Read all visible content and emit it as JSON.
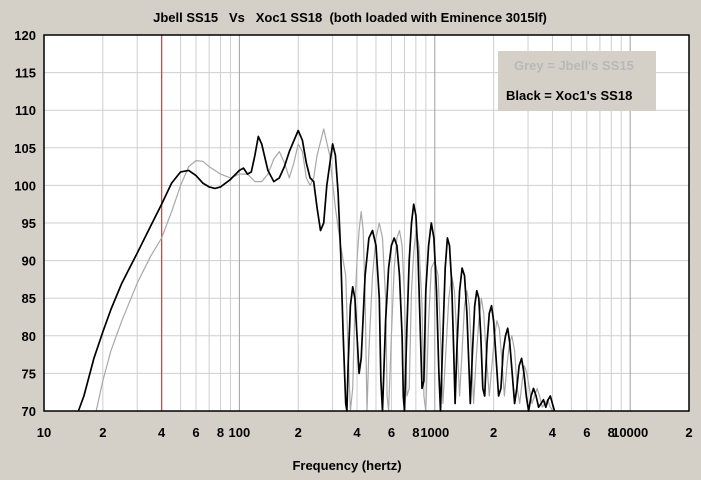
{
  "chart_data": {
    "type": "line",
    "title": "Jbell SS15   Vs   Xoc1 SS18  (both loaded with Eminence 3015lf)",
    "xlabel": "Frequency (hertz)",
    "ylabel": "",
    "xscale": "log",
    "xlim": [
      10,
      20000
    ],
    "ylim": [
      70,
      120
    ],
    "grid": true,
    "legend_placement": "top-right",
    "yticks": [
      "120",
      "115",
      "110",
      "105",
      "100",
      "95",
      "90",
      "85",
      "80",
      "75",
      "70"
    ],
    "xticks": [
      {
        "value": 10,
        "label": "10"
      },
      {
        "value": 20,
        "label": "2"
      },
      {
        "value": 40,
        "label": "4"
      },
      {
        "value": 60,
        "label": "6"
      },
      {
        "value": 80,
        "label": "8"
      },
      {
        "value": 100,
        "label": "100"
      },
      {
        "value": 200,
        "label": "2"
      },
      {
        "value": 400,
        "label": "4"
      },
      {
        "value": 600,
        "label": "6"
      },
      {
        "value": 800,
        "label": "8"
      },
      {
        "value": 1000,
        "label": "1000"
      },
      {
        "value": 2000,
        "label": "2"
      },
      {
        "value": 4000,
        "label": "4"
      },
      {
        "value": 6000,
        "label": "6"
      },
      {
        "value": 8000,
        "label": "8"
      },
      {
        "value": 10000,
        "label": "10000"
      },
      {
        "value": 20000,
        "label": "2"
      }
    ],
    "marker_line": {
      "x": 40,
      "color": "#c05050"
    },
    "legend": [
      {
        "label": "Grey = Jbell's SS15",
        "color": "#b8b8b8"
      },
      {
        "label": "Black = Xoc1's SS18",
        "color": "#000000"
      }
    ],
    "series": [
      {
        "color": "#a8a8a8",
        "points": [
          [
            18.5,
            70
          ],
          [
            20,
            74
          ],
          [
            22,
            78
          ],
          [
            25,
            82
          ],
          [
            30,
            87
          ],
          [
            35,
            90.5
          ],
          [
            40,
            93
          ],
          [
            45,
            96.5
          ],
          [
            50,
            100
          ],
          [
            55,
            102.5
          ],
          [
            60,
            103.3
          ],
          [
            65,
            103.2
          ],
          [
            70,
            102.5
          ],
          [
            80,
            101.5
          ],
          [
            90,
            101
          ],
          [
            100,
            101.5
          ],
          [
            110,
            101.5
          ],
          [
            120,
            100.5
          ],
          [
            130,
            100.5
          ],
          [
            140,
            101.5
          ],
          [
            150,
            103.5
          ],
          [
            160,
            104.5
          ],
          [
            170,
            103
          ],
          [
            180,
            101
          ],
          [
            190,
            103
          ],
          [
            200,
            105.5
          ],
          [
            210,
            104.5
          ],
          [
            220,
            101
          ],
          [
            230,
            100
          ],
          [
            240,
            101
          ],
          [
            250,
            104
          ],
          [
            270,
            107.5
          ],
          [
            290,
            104
          ],
          [
            310,
            97
          ],
          [
            330,
            92
          ],
          [
            350,
            88
          ],
          [
            360,
            78
          ],
          [
            370,
            70
          ],
          [
            380,
            73
          ],
          [
            390,
            84
          ],
          [
            400,
            90
          ],
          [
            410,
            94
          ],
          [
            420,
            96.5
          ],
          [
            430,
            94
          ],
          [
            440,
            85
          ],
          [
            450,
            70
          ],
          [
            460,
            78
          ],
          [
            480,
            88
          ],
          [
            500,
            93
          ],
          [
            520,
            95
          ],
          [
            540,
            93
          ],
          [
            560,
            85
          ],
          [
            570,
            72
          ],
          [
            580,
            70
          ],
          [
            600,
            80
          ],
          [
            620,
            89
          ],
          [
            640,
            93
          ],
          [
            660,
            94
          ],
          [
            680,
            92
          ],
          [
            700,
            85
          ],
          [
            720,
            72
          ],
          [
            740,
            73
          ],
          [
            760,
            86
          ],
          [
            780,
            91
          ],
          [
            800,
            94
          ],
          [
            830,
            92
          ],
          [
            860,
            84
          ],
          [
            880,
            72
          ],
          [
            900,
            70
          ],
          [
            930,
            82
          ],
          [
            960,
            89
          ],
          [
            1000,
            90
          ],
          [
            1040,
            88
          ],
          [
            1070,
            80
          ],
          [
            1100,
            71
          ],
          [
            1140,
            78
          ],
          [
            1180,
            85
          ],
          [
            1220,
            88
          ],
          [
            1260,
            86
          ],
          [
            1300,
            79
          ],
          [
            1340,
            72
          ],
          [
            1380,
            78
          ],
          [
            1420,
            84
          ],
          [
            1460,
            86
          ],
          [
            1500,
            84
          ],
          [
            1540,
            78
          ],
          [
            1580,
            71
          ],
          [
            1630,
            77
          ],
          [
            1680,
            82
          ],
          [
            1730,
            85
          ],
          [
            1780,
            83
          ],
          [
            1840,
            77
          ],
          [
            1900,
            72
          ],
          [
            1960,
            76
          ],
          [
            2020,
            80
          ],
          [
            2080,
            82
          ],
          [
            2140,
            81
          ],
          [
            2200,
            77
          ],
          [
            2270,
            72
          ],
          [
            2340,
            76
          ],
          [
            2410,
            79
          ],
          [
            2480,
            80
          ],
          [
            2560,
            78
          ],
          [
            2640,
            73
          ],
          [
            2720,
            71
          ],
          [
            2800,
            74
          ],
          [
            2880,
            76
          ],
          [
            2960,
            75
          ],
          [
            3050,
            73
          ],
          [
            3140,
            71
          ],
          [
            3240,
            72
          ],
          [
            3340,
            73
          ],
          [
            3440,
            72
          ],
          [
            3550,
            70.5
          ],
          [
            3660,
            71
          ],
          [
            3780,
            71.5
          ],
          [
            3900,
            70.5
          ],
          [
            4020,
            70
          ]
        ]
      },
      {
        "color": "#000000",
        "points": [
          [
            15,
            70
          ],
          [
            16,
            72
          ],
          [
            18,
            77
          ],
          [
            20,
            80.5
          ],
          [
            22,
            83.5
          ],
          [
            25,
            87
          ],
          [
            30,
            91
          ],
          [
            35,
            94.5
          ],
          [
            40,
            97.5
          ],
          [
            45,
            100.3
          ],
          [
            50,
            101.8
          ],
          [
            55,
            102
          ],
          [
            60,
            101.3
          ],
          [
            65,
            100.3
          ],
          [
            70,
            99.8
          ],
          [
            75,
            99.6
          ],
          [
            80,
            99.8
          ],
          [
            90,
            100.8
          ],
          [
            100,
            102
          ],
          [
            105,
            102.3
          ],
          [
            110,
            101.5
          ],
          [
            115,
            101.8
          ],
          [
            120,
            104
          ],
          [
            125,
            106.5
          ],
          [
            130,
            105.5
          ],
          [
            140,
            102
          ],
          [
            150,
            100.5
          ],
          [
            160,
            101
          ],
          [
            170,
            102.5
          ],
          [
            180,
            104.5
          ],
          [
            200,
            107.3
          ],
          [
            210,
            106
          ],
          [
            220,
            103
          ],
          [
            230,
            101
          ],
          [
            240,
            100.5
          ],
          [
            250,
            97
          ],
          [
            260,
            94
          ],
          [
            270,
            95
          ],
          [
            280,
            100
          ],
          [
            300,
            105.5
          ],
          [
            310,
            104
          ],
          [
            320,
            99
          ],
          [
            330,
            91
          ],
          [
            340,
            80
          ],
          [
            350,
            71
          ],
          [
            355,
            70
          ],
          [
            360,
            76
          ],
          [
            370,
            84
          ],
          [
            380,
            86.5
          ],
          [
            390,
            85
          ],
          [
            400,
            80
          ],
          [
            410,
            75
          ],
          [
            420,
            77
          ],
          [
            440,
            88
          ],
          [
            460,
            93
          ],
          [
            480,
            94
          ],
          [
            500,
            92
          ],
          [
            520,
            85
          ],
          [
            530,
            74
          ],
          [
            540,
            70
          ],
          [
            560,
            82
          ],
          [
            580,
            89
          ],
          [
            600,
            92
          ],
          [
            620,
            93
          ],
          [
            640,
            92
          ],
          [
            660,
            88
          ],
          [
            680,
            80
          ],
          [
            690,
            72
          ],
          [
            700,
            70
          ],
          [
            720,
            81
          ],
          [
            740,
            90
          ],
          [
            760,
            95
          ],
          [
            780,
            97.5
          ],
          [
            800,
            96
          ],
          [
            820,
            91
          ],
          [
            840,
            82
          ],
          [
            860,
            73
          ],
          [
            880,
            74
          ],
          [
            900,
            86
          ],
          [
            930,
            92
          ],
          [
            960,
            95
          ],
          [
            990,
            93
          ],
          [
            1020,
            86
          ],
          [
            1050,
            75
          ],
          [
            1070,
            70
          ],
          [
            1100,
            80
          ],
          [
            1130,
            89
          ],
          [
            1160,
            93
          ],
          [
            1190,
            92
          ],
          [
            1220,
            87
          ],
          [
            1250,
            78
          ],
          [
            1270,
            71
          ],
          [
            1300,
            79
          ],
          [
            1340,
            86
          ],
          [
            1380,
            89
          ],
          [
            1420,
            88
          ],
          [
            1460,
            83
          ],
          [
            1500,
            75
          ],
          [
            1520,
            71
          ],
          [
            1560,
            78
          ],
          [
            1600,
            84
          ],
          [
            1640,
            86
          ],
          [
            1680,
            85
          ],
          [
            1720,
            80
          ],
          [
            1760,
            73
          ],
          [
            1800,
            72
          ],
          [
            1850,
            79
          ],
          [
            1900,
            83
          ],
          [
            1950,
            84
          ],
          [
            2000,
            82
          ],
          [
            2060,
            77
          ],
          [
            2120,
            72
          ],
          [
            2180,
            73
          ],
          [
            2240,
            78
          ],
          [
            2300,
            80
          ],
          [
            2360,
            81
          ],
          [
            2420,
            79
          ],
          [
            2490,
            75
          ],
          [
            2560,
            71
          ],
          [
            2630,
            73
          ],
          [
            2700,
            76
          ],
          [
            2780,
            77
          ],
          [
            2860,
            75
          ],
          [
            2940,
            72
          ],
          [
            3020,
            70
          ],
          [
            3110,
            72
          ],
          [
            3200,
            73
          ],
          [
            3300,
            72
          ],
          [
            3400,
            70.5
          ],
          [
            3500,
            71
          ],
          [
            3600,
            71.5
          ],
          [
            3700,
            70.5
          ],
          [
            3800,
            71.5
          ],
          [
            3900,
            72
          ],
          [
            4000,
            71
          ],
          [
            4100,
            70
          ]
        ]
      }
    ]
  }
}
